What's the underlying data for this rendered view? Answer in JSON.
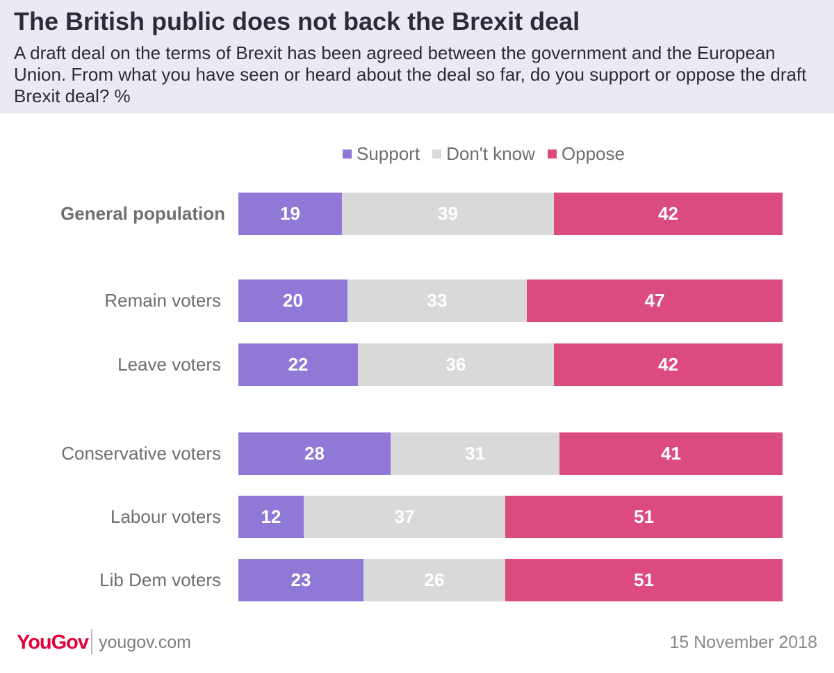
{
  "header": {
    "title": "The British public does not back the Brexit deal",
    "subtitle": "A draft deal on the terms of Brexit has been agreed between the government and the European Union. From what you have seen or heard about the deal so far, do you support or oppose the draft Brexit deal? %"
  },
  "footer": {
    "logo": "YouGov",
    "site": "yougov.com",
    "date": "15 November 2018"
  },
  "colors": {
    "support": "#8f78d6",
    "dont_know": "#d9d9d9",
    "oppose": "#dc4b7f",
    "header_bg": "#ece9f3",
    "brand": "#e4003b"
  },
  "chart_data": {
    "type": "bar",
    "orientation": "horizontal",
    "stacked": true,
    "legend_position": "top",
    "categories": [
      "General population",
      "Remain voters",
      "Leave voters",
      "Conservative voters",
      "Labour voters",
      "Lib Dem voters"
    ],
    "series": [
      {
        "name": "Support",
        "values": [
          19,
          20,
          22,
          28,
          12,
          23
        ]
      },
      {
        "name": "Don't know",
        "values": [
          39,
          33,
          36,
          31,
          37,
          26
        ]
      },
      {
        "name": "Oppose",
        "values": [
          42,
          47,
          42,
          41,
          51,
          51
        ]
      }
    ],
    "xlim": [
      0,
      100
    ]
  }
}
